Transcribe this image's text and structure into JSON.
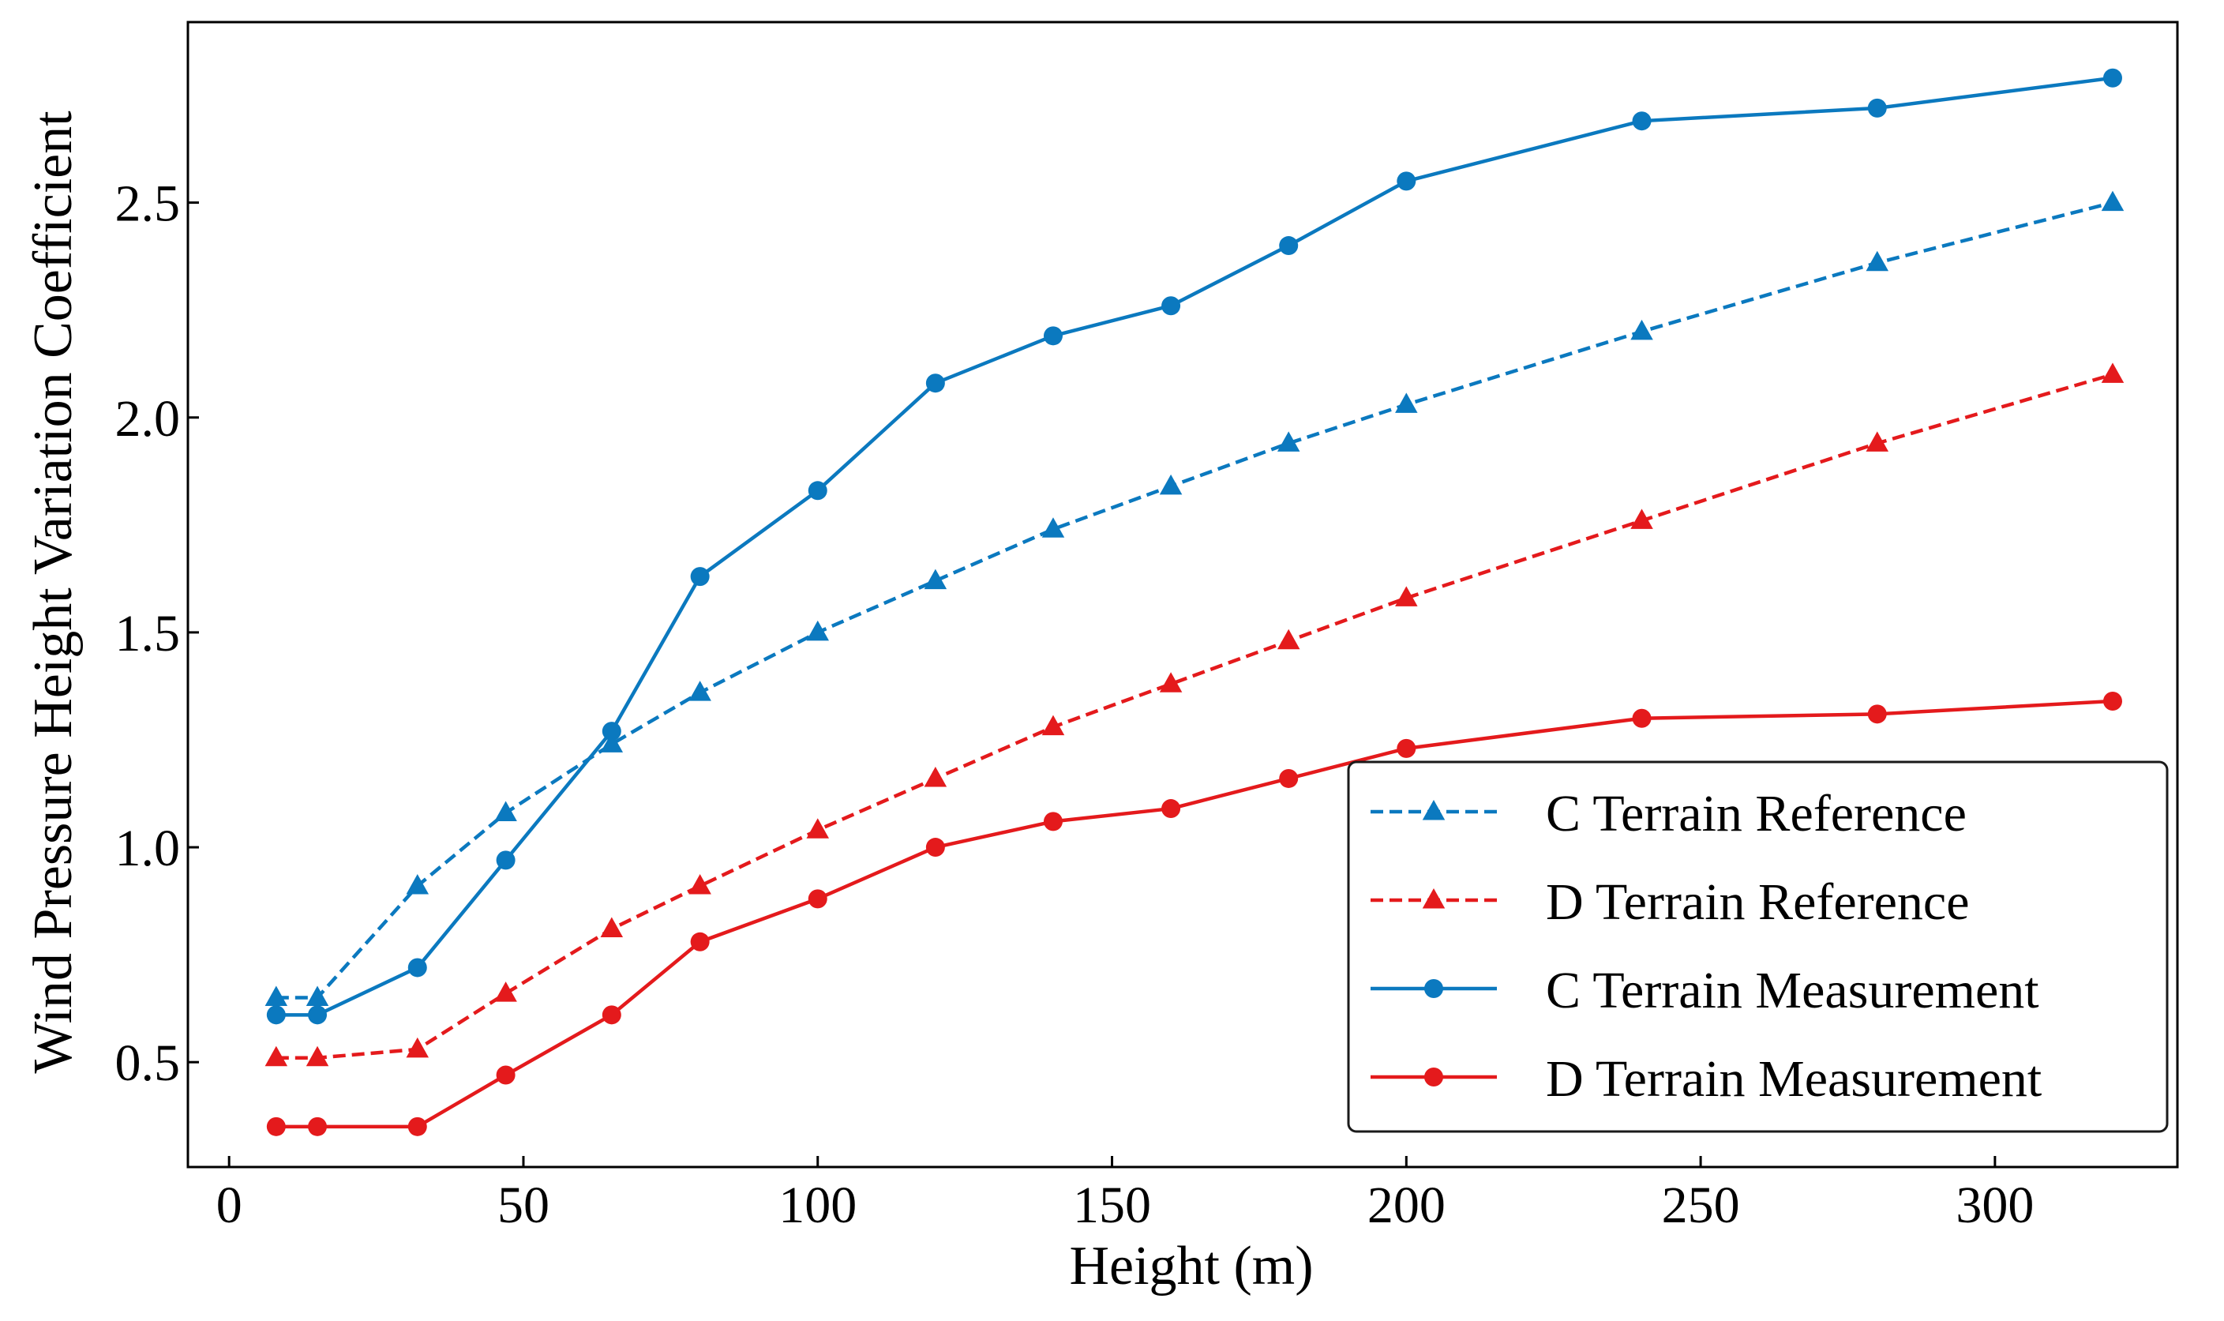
{
  "chart_data": {
    "type": "line",
    "title": "",
    "xlabel": "Height (m)",
    "ylabel": "Wind Pressure Height Variation Coefficient",
    "xlim": [
      -7,
      331
    ],
    "ylim": [
      0.256,
      2.92
    ],
    "xticks": [
      0,
      50,
      100,
      150,
      200,
      250,
      300
    ],
    "xtick_labels": [
      "0",
      "50",
      "100",
      "150",
      "200",
      "250",
      "300"
    ],
    "yticks": [
      0.5,
      1.0,
      1.5,
      2.0,
      2.5
    ],
    "ytick_labels": [
      "0.5",
      "1.0",
      "1.5",
      "2.0",
      "2.5"
    ],
    "grid": false,
    "legend_position": "bottom-right",
    "series": [
      {
        "name": "C Terrain Reference",
        "color": "#0b79bf",
        "line_style": "dashed",
        "marker": "triangle",
        "x": [
          8,
          15,
          32,
          47,
          65,
          80,
          100,
          120,
          140,
          160,
          180,
          200,
          240,
          280,
          320
        ],
        "y": [
          0.65,
          0.65,
          0.91,
          1.08,
          1.24,
          1.36,
          1.5,
          1.62,
          1.74,
          1.84,
          1.94,
          2.03,
          2.2,
          2.36,
          2.5
        ]
      },
      {
        "name": "D Terrain Reference",
        "color": "#e41a1c",
        "line_style": "dashed",
        "marker": "triangle",
        "x": [
          8,
          15,
          32,
          47,
          65,
          80,
          100,
          120,
          140,
          160,
          180,
          200,
          240,
          280,
          320
        ],
        "y": [
          0.51,
          0.51,
          0.53,
          0.66,
          0.81,
          0.91,
          1.04,
          1.16,
          1.28,
          1.38,
          1.48,
          1.58,
          1.76,
          1.94,
          2.1
        ]
      },
      {
        "name": "C Terrain Measurement",
        "color": "#0b79bf",
        "line_style": "solid",
        "marker": "circle",
        "x": [
          8,
          15,
          32,
          47,
          65,
          80,
          100,
          120,
          140,
          160,
          180,
          200,
          240,
          280,
          320
        ],
        "y": [
          0.61,
          0.61,
          0.72,
          0.97,
          1.27,
          1.63,
          1.83,
          2.08,
          2.19,
          2.26,
          2.4,
          2.55,
          2.69,
          2.72,
          2.79
        ]
      },
      {
        "name": "D Terrain Measurement",
        "color": "#e41a1c",
        "line_style": "solid",
        "marker": "circle",
        "x": [
          8,
          15,
          32,
          47,
          65,
          80,
          100,
          120,
          140,
          160,
          180,
          200,
          240,
          280,
          320
        ],
        "y": [
          0.35,
          0.35,
          0.35,
          0.47,
          0.61,
          0.78,
          0.88,
          1.0,
          1.06,
          1.09,
          1.16,
          1.23,
          1.3,
          1.31,
          1.34
        ]
      }
    ]
  }
}
